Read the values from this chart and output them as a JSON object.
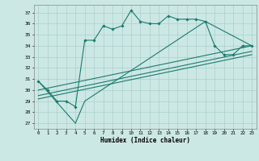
{
  "title": "",
  "xlabel": "Humidex (Indice chaleur)",
  "bg_color": "#cce8e4",
  "line_color": "#1a7a6e",
  "grid_color": "#aacfcc",
  "xlim": [
    -0.5,
    23.5
  ],
  "ylim": [
    26.5,
    37.7
  ],
  "yticks": [
    27,
    28,
    29,
    30,
    31,
    32,
    33,
    34,
    35,
    36,
    37
  ],
  "xticks": [
    0,
    1,
    2,
    3,
    4,
    5,
    6,
    7,
    8,
    9,
    10,
    11,
    12,
    13,
    14,
    15,
    16,
    17,
    18,
    19,
    20,
    21,
    22,
    23
  ],
  "line1_x": [
    0,
    1,
    2,
    3,
    4,
    5,
    6,
    7,
    8,
    9,
    10,
    11,
    12,
    13,
    14,
    15,
    16,
    17,
    18,
    19,
    20,
    21,
    22,
    23
  ],
  "line1_y": [
    30.8,
    30.0,
    29.0,
    29.0,
    28.5,
    34.5,
    34.5,
    35.8,
    35.5,
    35.8,
    37.2,
    36.2,
    36.0,
    36.0,
    36.7,
    36.4,
    36.4,
    36.4,
    36.2,
    34.0,
    33.2,
    33.2,
    34.0,
    34.0
  ],
  "line2_x": [
    0,
    4,
    5,
    18,
    23
  ],
  "line2_y": [
    30.8,
    27.0,
    29.0,
    36.2,
    34.0
  ],
  "line3_x": [
    0,
    23
  ],
  "line3_y": [
    29.2,
    33.2
  ],
  "line4_x": [
    0,
    23
  ],
  "line4_y": [
    29.5,
    33.5
  ],
  "line5_x": [
    0,
    23
  ],
  "line5_y": [
    30.0,
    34.0
  ]
}
